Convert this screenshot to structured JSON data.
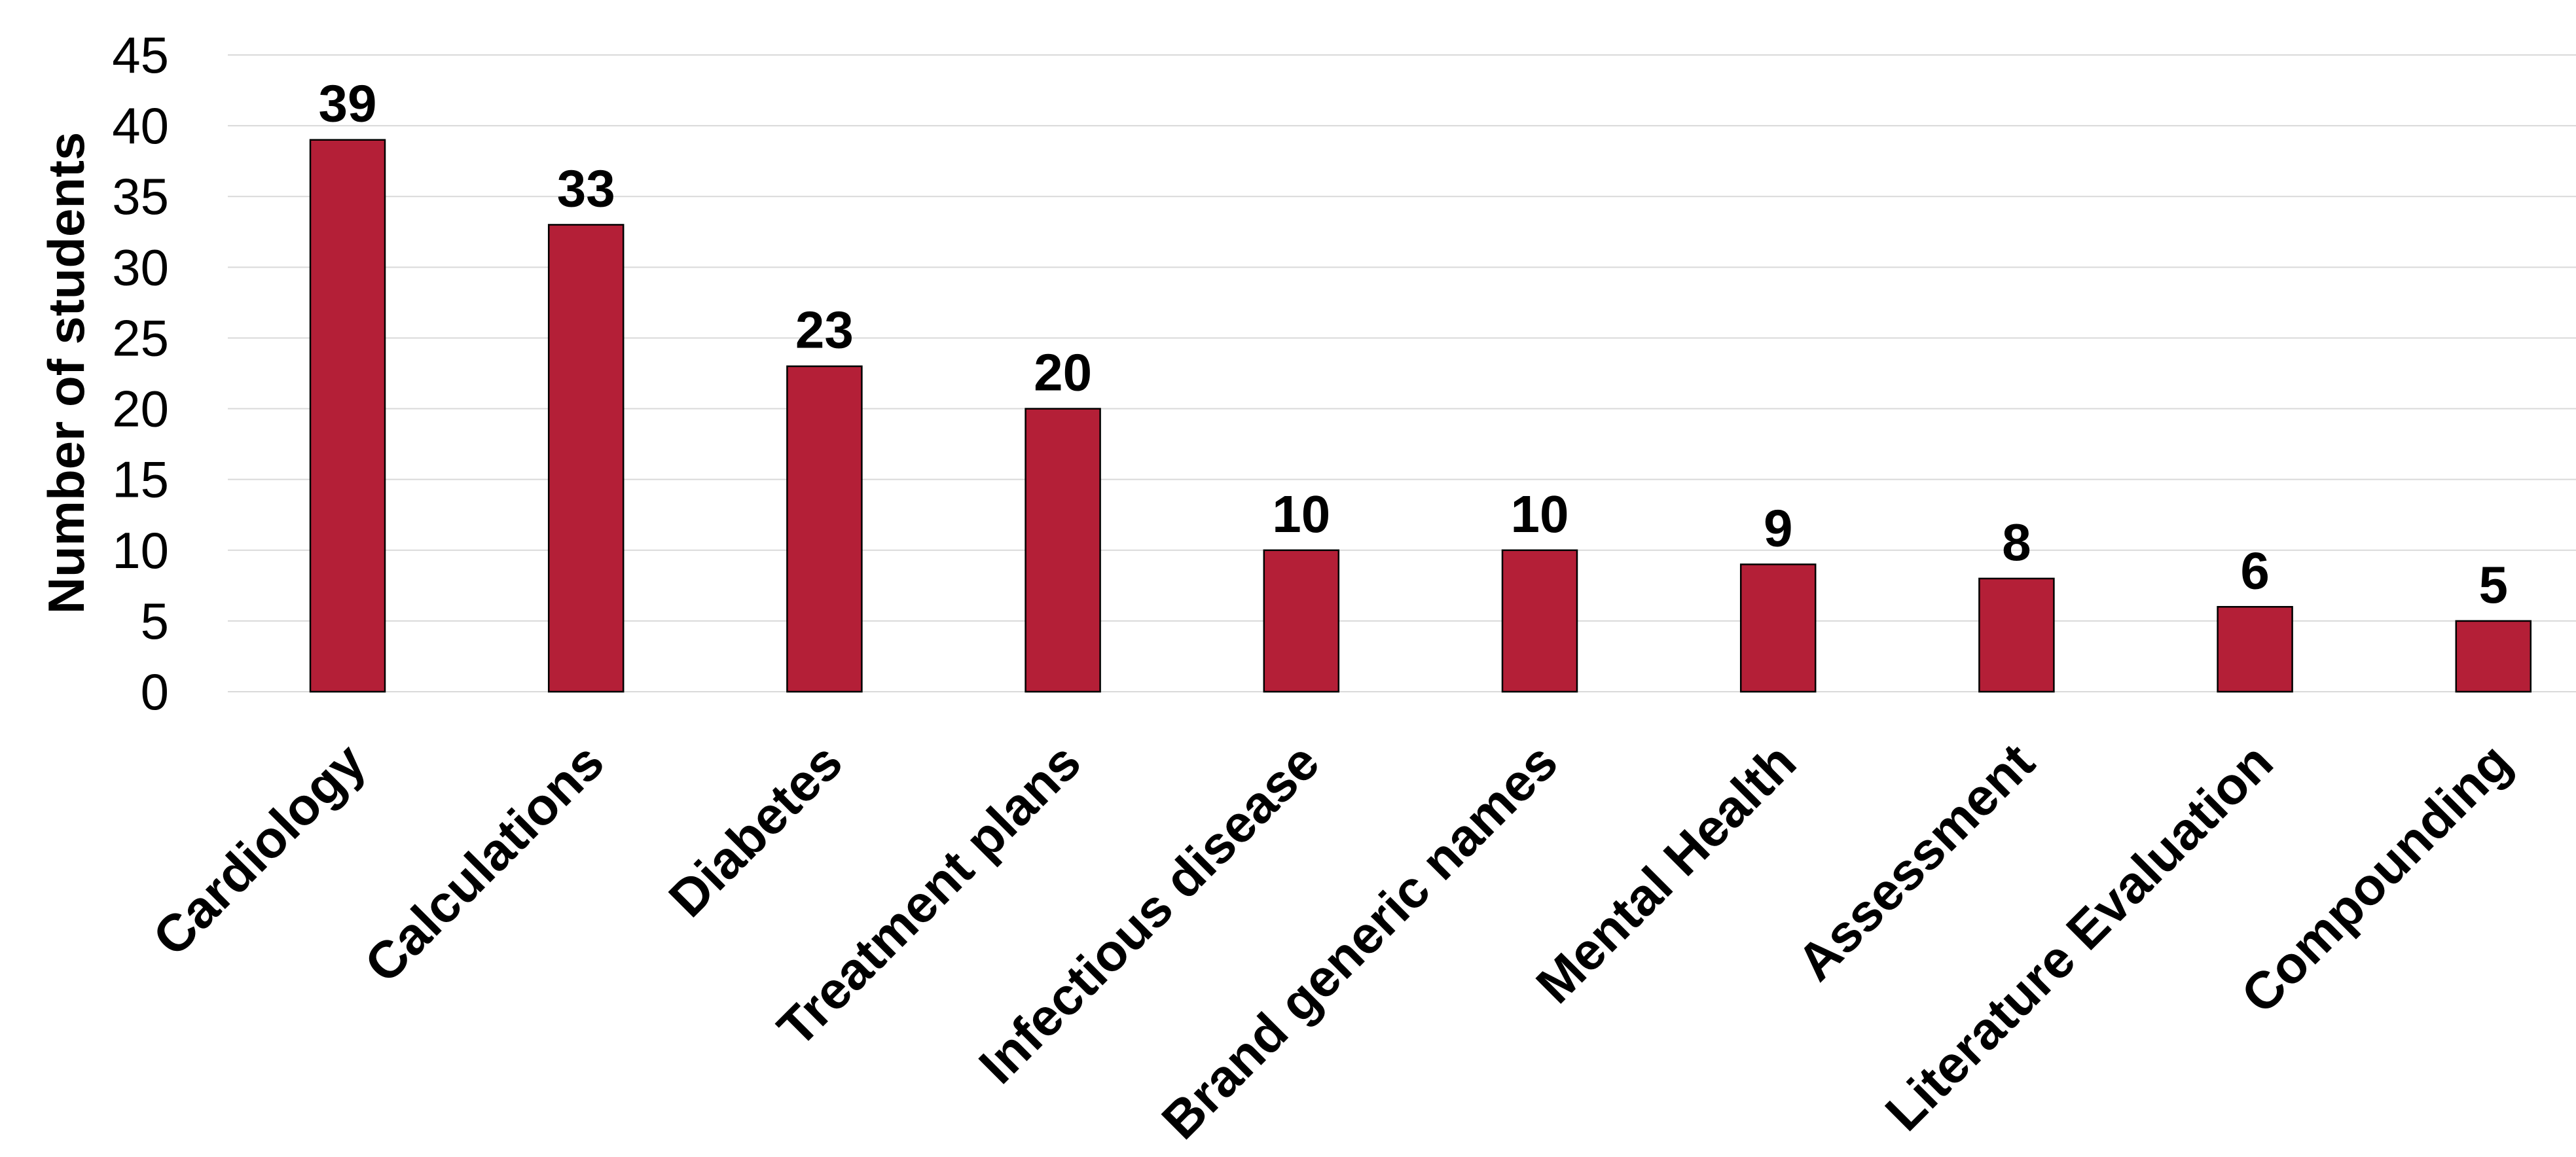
{
  "chart_data": {
    "type": "bar",
    "title": "",
    "xlabel": "",
    "ylabel": "Number of students",
    "ylim": [
      0,
      45
    ],
    "yticks": [
      0,
      5,
      10,
      15,
      20,
      25,
      30,
      35,
      40,
      45
    ],
    "categories": [
      "Cardiology",
      "Calculations",
      "Diabetes",
      "Treatment plans",
      "Infectious disease",
      "Brand generic names",
      "Mental Health",
      "Assessment",
      "Literature Evaluation",
      "Compounding"
    ],
    "values": [
      39,
      33,
      23,
      20,
      10,
      10,
      9,
      8,
      6,
      5
    ],
    "bar_color": "#b41f37",
    "grid": true,
    "legend": "none"
  }
}
